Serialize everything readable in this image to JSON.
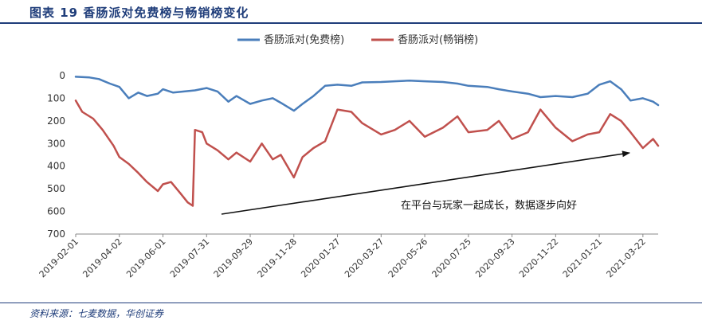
{
  "header": {
    "title": "图表 19   香肠派对免费榜与畅销榜变化"
  },
  "footer": {
    "source": "资料来源：七麦数据，华创证券"
  },
  "chart_data": {
    "type": "line",
    "x_tick_labels": [
      "2019-02-01",
      "2019-04-02",
      "2019-06-01",
      "2019-07-31",
      "2019-09-29",
      "2019-11-28",
      "2020-01-27",
      "2020-03-27",
      "2020-05-26",
      "2020-07-25",
      "2020-09-23",
      "2020-11-22",
      "2021-01-21",
      "2021-03-22"
    ],
    "x_range": [
      "2019-02-01",
      "2021-04-12"
    ],
    "yticks": [
      0,
      100,
      200,
      300,
      400,
      500,
      600,
      700
    ],
    "ylim": [
      0,
      700
    ],
    "y_inverted": true,
    "grid": false,
    "legend_position": "top-center",
    "annotation": "在平台与玩家一起成长，数据逐步向好",
    "series": [
      {
        "name": "香肠派对(免费榜)",
        "color": "#4a7ebb",
        "points": [
          [
            "2019-02-01",
            5
          ],
          [
            "2019-02-20",
            8
          ],
          [
            "2019-03-05",
            15
          ],
          [
            "2019-03-20",
            35
          ],
          [
            "2019-04-02",
            50
          ],
          [
            "2019-04-15",
            100
          ],
          [
            "2019-04-28",
            75
          ],
          [
            "2019-05-10",
            90
          ],
          [
            "2019-05-25",
            80
          ],
          [
            "2019-06-01",
            60
          ],
          [
            "2019-06-15",
            75
          ],
          [
            "2019-06-30",
            70
          ],
          [
            "2019-07-15",
            65
          ],
          [
            "2019-07-31",
            55
          ],
          [
            "2019-08-15",
            70
          ],
          [
            "2019-08-30",
            115
          ],
          [
            "2019-09-10",
            90
          ],
          [
            "2019-09-29",
            125
          ],
          [
            "2019-10-15",
            110
          ],
          [
            "2019-10-30",
            100
          ],
          [
            "2019-11-10",
            120
          ],
          [
            "2019-11-28",
            155
          ],
          [
            "2019-12-10",
            125
          ],
          [
            "2019-12-25",
            90
          ],
          [
            "2020-01-10",
            45
          ],
          [
            "2020-01-27",
            40
          ],
          [
            "2020-02-15",
            45
          ],
          [
            "2020-03-01",
            30
          ],
          [
            "2020-03-27",
            28
          ],
          [
            "2020-04-15",
            25
          ],
          [
            "2020-05-05",
            22
          ],
          [
            "2020-05-26",
            25
          ],
          [
            "2020-06-20",
            28
          ],
          [
            "2020-07-10",
            35
          ],
          [
            "2020-07-25",
            45
          ],
          [
            "2020-08-20",
            50
          ],
          [
            "2020-09-05",
            60
          ],
          [
            "2020-09-23",
            70
          ],
          [
            "2020-10-15",
            80
          ],
          [
            "2020-11-01",
            95
          ],
          [
            "2020-11-22",
            90
          ],
          [
            "2020-12-15",
            95
          ],
          [
            "2021-01-05",
            80
          ],
          [
            "2021-01-21",
            40
          ],
          [
            "2021-02-05",
            25
          ],
          [
            "2021-02-20",
            60
          ],
          [
            "2021-03-05",
            110
          ],
          [
            "2021-03-22",
            100
          ],
          [
            "2021-04-05",
            115
          ],
          [
            "2021-04-12",
            130
          ]
        ]
      },
      {
        "name": "香肠派对(畅销榜)",
        "color": "#c0504d",
        "points": [
          [
            "2019-02-01",
            110
          ],
          [
            "2019-02-10",
            160
          ],
          [
            "2019-02-25",
            190
          ],
          [
            "2019-03-10",
            240
          ],
          [
            "2019-03-25",
            310
          ],
          [
            "2019-04-02",
            360
          ],
          [
            "2019-04-15",
            390
          ],
          [
            "2019-04-28",
            430
          ],
          [
            "2019-05-10",
            470
          ],
          [
            "2019-05-25",
            510
          ],
          [
            "2019-06-01",
            480
          ],
          [
            "2019-06-12",
            470
          ],
          [
            "2019-06-25",
            520
          ],
          [
            "2019-07-05",
            560
          ],
          [
            "2019-07-12",
            575
          ],
          [
            "2019-07-15",
            240
          ],
          [
            "2019-07-25",
            250
          ],
          [
            "2019-07-31",
            300
          ],
          [
            "2019-08-15",
            330
          ],
          [
            "2019-08-30",
            370
          ],
          [
            "2019-09-10",
            340
          ],
          [
            "2019-09-29",
            380
          ],
          [
            "2019-10-15",
            300
          ],
          [
            "2019-10-30",
            370
          ],
          [
            "2019-11-10",
            350
          ],
          [
            "2019-11-28",
            450
          ],
          [
            "2019-12-10",
            360
          ],
          [
            "2019-12-25",
            320
          ],
          [
            "2020-01-10",
            290
          ],
          [
            "2020-01-27",
            150
          ],
          [
            "2020-02-15",
            160
          ],
          [
            "2020-03-01",
            210
          ],
          [
            "2020-03-27",
            260
          ],
          [
            "2020-04-15",
            240
          ],
          [
            "2020-05-05",
            200
          ],
          [
            "2020-05-26",
            270
          ],
          [
            "2020-06-20",
            230
          ],
          [
            "2020-07-10",
            180
          ],
          [
            "2020-07-25",
            250
          ],
          [
            "2020-08-20",
            240
          ],
          [
            "2020-09-05",
            200
          ],
          [
            "2020-09-23",
            280
          ],
          [
            "2020-10-15",
            250
          ],
          [
            "2020-11-01",
            150
          ],
          [
            "2020-11-22",
            230
          ],
          [
            "2020-12-15",
            290
          ],
          [
            "2021-01-05",
            260
          ],
          [
            "2021-01-21",
            250
          ],
          [
            "2021-02-05",
            170
          ],
          [
            "2021-02-20",
            200
          ],
          [
            "2021-03-05",
            250
          ],
          [
            "2021-03-22",
            320
          ],
          [
            "2021-04-05",
            280
          ],
          [
            "2021-04-12",
            310
          ]
        ]
      }
    ]
  }
}
